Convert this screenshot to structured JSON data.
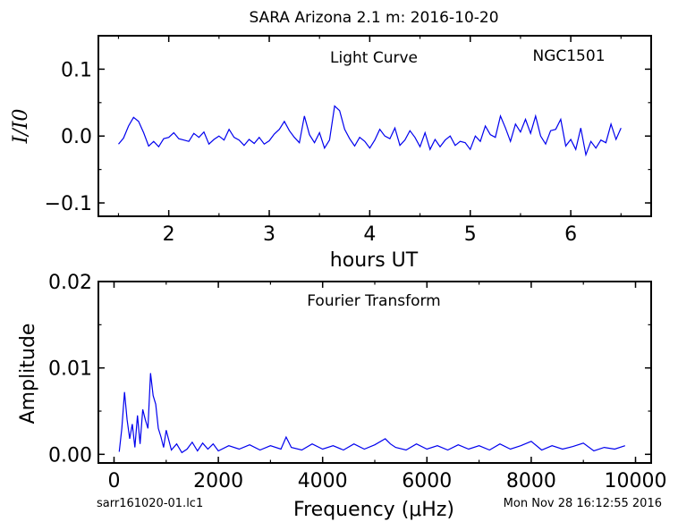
{
  "figure": {
    "title": "SARA Arizona 2.1 m:  2016-10-20",
    "footer_left": "sarr161020-01.lc1",
    "footer_right": "Mon Nov 28 16:12:55 2016"
  },
  "chart_data": [
    {
      "type": "line",
      "panel": "light-curve",
      "annotation": "Light Curve",
      "object_label": "NGC1501",
      "xlabel": "hours UT",
      "ylabel": "I/I0",
      "xlim": [
        1.3,
        6.8
      ],
      "ylim": [
        -0.12,
        0.15
      ],
      "xticks": [
        2,
        3,
        4,
        5,
        6
      ],
      "yticks": [
        -0.1,
        0.0,
        0.1
      ],
      "xtick_labels": [
        "2",
        "3",
        "4",
        "5",
        "6"
      ],
      "ytick_labels": [
        "−0.1",
        "0.0",
        "0.1"
      ],
      "line_color": "#0000ee",
      "series": [
        {
          "x": [
            1.5,
            1.55,
            1.6,
            1.65,
            1.7,
            1.75,
            1.8,
            1.85,
            1.9,
            1.95,
            2.0,
            2.05,
            2.1,
            2.15,
            2.2,
            2.25,
            2.3,
            2.35,
            2.4,
            2.45,
            2.5,
            2.55,
            2.6,
            2.65,
            2.7,
            2.75,
            2.8,
            2.85,
            2.9,
            2.95,
            3.0,
            3.05,
            3.1,
            3.15,
            3.2,
            3.25,
            3.3,
            3.35,
            3.4,
            3.45,
            3.5,
            3.55,
            3.6,
            3.65,
            3.7,
            3.75,
            3.8,
            3.85,
            3.9,
            3.95,
            4.0,
            4.05,
            4.1,
            4.15,
            4.2,
            4.25,
            4.3,
            4.35,
            4.4,
            4.45,
            4.5,
            4.55,
            4.6,
            4.65,
            4.7,
            4.75,
            4.8,
            4.85,
            4.9,
            4.95,
            5.0,
            5.05,
            5.1,
            5.15,
            5.2,
            5.25,
            5.3,
            5.35,
            5.4,
            5.45,
            5.5,
            5.55,
            5.6,
            5.65,
            5.7,
            5.75,
            5.8,
            5.85,
            5.9,
            5.95,
            6.0,
            6.05,
            6.1,
            6.15,
            6.2,
            6.25,
            6.3,
            6.35,
            6.4,
            6.45,
            6.5
          ],
          "y": [
            -0.012,
            -0.003,
            0.015,
            0.028,
            0.022,
            0.005,
            -0.015,
            -0.008,
            -0.016,
            -0.004,
            -0.002,
            0.005,
            -0.004,
            -0.006,
            -0.008,
            0.004,
            -0.002,
            0.006,
            -0.012,
            -0.005,
            0.0,
            -0.006,
            0.01,
            -0.002,
            -0.006,
            -0.014,
            -0.005,
            -0.011,
            -0.002,
            -0.012,
            -0.007,
            0.003,
            0.01,
            0.022,
            0.008,
            -0.002,
            -0.01,
            0.03,
            0.002,
            -0.01,
            0.005,
            -0.018,
            -0.006,
            0.045,
            0.038,
            0.01,
            -0.004,
            -0.015,
            -0.002,
            -0.008,
            -0.018,
            -0.006,
            0.01,
            0.0,
            -0.004,
            0.012,
            -0.014,
            -0.006,
            0.008,
            -0.002,
            -0.016,
            0.005,
            -0.02,
            -0.005,
            -0.016,
            -0.006,
            0.0,
            -0.014,
            -0.008,
            -0.01,
            -0.02,
            0.0,
            -0.008,
            0.015,
            0.002,
            -0.002,
            0.03,
            0.012,
            -0.008,
            0.018,
            0.006,
            0.025,
            0.004,
            0.03,
            0.0,
            -0.012,
            0.008,
            0.01,
            0.025,
            -0.015,
            -0.005,
            -0.02,
            0.012,
            -0.028,
            -0.008,
            -0.018,
            -0.006,
            -0.01,
            0.018,
            -0.005,
            0.012
          ]
        }
      ]
    },
    {
      "type": "line",
      "panel": "fourier-transform",
      "annotation": "Fourier Transform",
      "xlabel": "Frequency (μHz)",
      "ylabel": "Amplitude",
      "xlim": [
        -300,
        10300
      ],
      "ylim": [
        -0.001,
        0.02
      ],
      "xticks": [
        0,
        2000,
        4000,
        6000,
        8000,
        10000
      ],
      "yticks": [
        0.0,
        0.01,
        0.02
      ],
      "xtick_labels": [
        "0",
        "2000",
        "4000",
        "6000",
        "8000",
        "10000"
      ],
      "ytick_labels": [
        "0.00",
        "0.01",
        "0.02"
      ],
      "line_color": "#0000ee",
      "series": [
        {
          "x": [
            100,
            150,
            200,
            250,
            300,
            350,
            400,
            450,
            500,
            550,
            600,
            650,
            700,
            750,
            800,
            850,
            900,
            950,
            1000,
            1100,
            1200,
            1300,
            1400,
            1500,
            1600,
            1700,
            1800,
            1900,
            2000,
            2200,
            2400,
            2600,
            2800,
            3000,
            3200,
            3300,
            3400,
            3600,
            3800,
            4000,
            4200,
            4400,
            4600,
            4800,
            5000,
            5200,
            5300,
            5400,
            5600,
            5800,
            6000,
            6200,
            6400,
            6600,
            6800,
            7000,
            7200,
            7400,
            7600,
            7800,
            8000,
            8200,
            8400,
            8600,
            8800,
            9000,
            9200,
            9400,
            9600,
            9800
          ],
          "y": [
            0.0003,
            0.003,
            0.0072,
            0.004,
            0.0018,
            0.0035,
            0.0008,
            0.0045,
            0.0012,
            0.0052,
            0.004,
            0.003,
            0.0094,
            0.0068,
            0.0058,
            0.003,
            0.002,
            0.0008,
            0.0028,
            0.0005,
            0.0012,
            0.0002,
            0.0006,
            0.0014,
            0.0004,
            0.0013,
            0.0006,
            0.0012,
            0.0004,
            0.001,
            0.0006,
            0.0011,
            0.0005,
            0.001,
            0.0006,
            0.002,
            0.0008,
            0.0005,
            0.0012,
            0.0006,
            0.001,
            0.0005,
            0.0012,
            0.0006,
            0.0011,
            0.0018,
            0.0012,
            0.0008,
            0.0005,
            0.0012,
            0.0006,
            0.001,
            0.0005,
            0.0011,
            0.0006,
            0.001,
            0.0005,
            0.0012,
            0.0006,
            0.001,
            0.0015,
            0.0005,
            0.001,
            0.0006,
            0.0009,
            0.0013,
            0.0004,
            0.0008,
            0.0006,
            0.001
          ]
        }
      ]
    }
  ]
}
